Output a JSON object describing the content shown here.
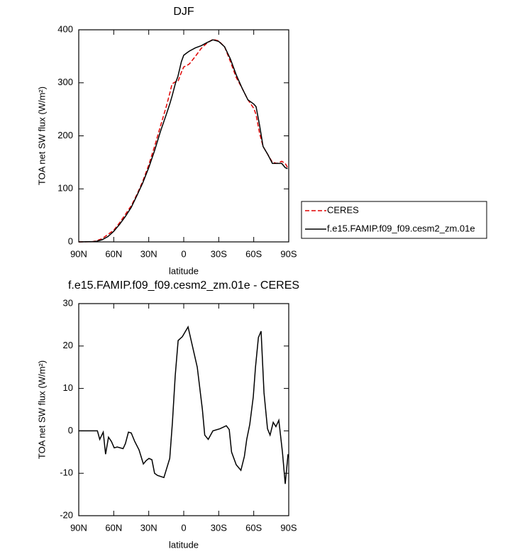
{
  "chart_data": [
    {
      "type": "line",
      "title": "DJF",
      "xlabel": "latitude",
      "ylabel": "TOA net SW flux (W/m²)",
      "x": [
        90,
        78,
        75,
        70,
        65,
        60,
        55,
        50,
        45,
        40,
        35,
        30,
        25,
        20,
        15,
        12,
        10,
        7,
        5,
        2,
        0,
        -3,
        -5,
        -10,
        -15,
        -20,
        -25,
        -30,
        -35,
        -40,
        -45,
        -50,
        -55,
        -60,
        -62,
        -65,
        -68,
        -72,
        -76,
        -80,
        -84,
        -87,
        -89
      ],
      "series": [
        {
          "name": "CERES",
          "color": "#e00000",
          "dash": true,
          "values": [
            0,
            0.5,
            2,
            6,
            14,
            22,
            36,
            52,
            68,
            90,
            115,
            145,
            180,
            218,
            255,
            280,
            298,
            302,
            302,
            320,
            330,
            333,
            336,
            350,
            365,
            375,
            382,
            379,
            368,
            340,
            310,
            290,
            268,
            252,
            240,
            205,
            180,
            165,
            150,
            148,
            152,
            148,
            140
          ]
        },
        {
          "name": "f.e15.FAMIP.f09_f09.cesm2_zm.01e",
          "color": "#000000",
          "dash": false,
          "values": [
            0,
            0.5,
            1,
            4,
            10,
            20,
            33,
            48,
            65,
            88,
            112,
            140,
            172,
            208,
            240,
            260,
            275,
            300,
            312,
            340,
            352,
            357,
            360,
            366,
            370,
            376,
            381,
            378,
            368,
            345,
            315,
            290,
            268,
            260,
            255,
            220,
            180,
            165,
            148,
            148,
            148,
            140,
            138
          ]
        }
      ],
      "xlim": [
        90,
        -90
      ],
      "ylim": [
        0,
        400
      ],
      "xticks": [
        {
          "value": 90,
          "label": "90N"
        },
        {
          "value": 60,
          "label": "60N"
        },
        {
          "value": 30,
          "label": "30N"
        },
        0,
        {
          "value": -30,
          "label": "30S"
        },
        {
          "value": -60,
          "label": "60S"
        },
        {
          "value": -90,
          "label": "90S"
        }
      ],
      "yticks": [
        0,
        100,
        200,
        300,
        400
      ],
      "legend": "right"
    },
    {
      "type": "line",
      "title": "f.e15.FAMIP.f09_f09.cesm2_zm.01e - CERES",
      "xlabel": "latitude",
      "ylabel": "TOA net SW flux (W/m²)",
      "x": [
        90,
        74,
        72,
        69,
        67,
        64.5,
        62,
        59.6,
        57,
        52,
        50,
        47.4,
        45,
        42,
        38.3,
        34.6,
        32.2,
        29.8,
        27.3,
        25,
        22.5,
        17,
        12,
        9.7,
        7.3,
        4.8,
        1.2,
        -3.7,
        -11.6,
        -16,
        -18,
        -21,
        -25,
        -31,
        -36.5,
        -39,
        -41,
        -45,
        -49,
        -52,
        -54,
        -56.6,
        -59.6,
        -61.5,
        -64,
        -66.3,
        -68.8,
        -71.8,
        -74,
        -76.7,
        -79,
        -81.5,
        -84.6,
        -87,
        -89.4
      ],
      "series": [
        {
          "color": "#000000",
          "values": [
            0,
            0,
            -2,
            -0.3,
            -5.5,
            -1.5,
            -2.5,
            -4,
            -3.8,
            -4.2,
            -3,
            -0.3,
            -0.5,
            -2.5,
            -4.5,
            -7.8,
            -7,
            -6.5,
            -6.8,
            -10,
            -10.5,
            -11,
            -6.5,
            2,
            13,
            21.3,
            22.2,
            24.5,
            15,
            5,
            -1,
            -2,
            0,
            0.5,
            1.2,
            0.3,
            -5,
            -8,
            -9.3,
            -6,
            -2,
            1.5,
            8,
            15,
            22,
            23.5,
            9,
            0.5,
            -1,
            2,
            1,
            2.5,
            -5,
            -12.5,
            -5.5
          ]
        }
      ],
      "xlim": [
        90,
        -90
      ],
      "ylim": [
        -20,
        30
      ],
      "xticks": [
        {
          "value": 90,
          "label": "90N"
        },
        {
          "value": 60,
          "label": "60N"
        },
        {
          "value": 30,
          "label": "30N"
        },
        0,
        {
          "value": -30,
          "label": "30S"
        },
        {
          "value": -60,
          "label": "60S"
        },
        {
          "value": -90,
          "label": "90S"
        }
      ],
      "yticks": [
        -20,
        -10,
        0,
        10,
        20,
        30
      ]
    }
  ]
}
